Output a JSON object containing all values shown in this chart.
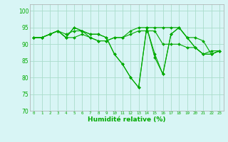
{
  "title": "",
  "xlabel": "Humidité relative (%)",
  "ylabel": "",
  "background_color": "#d8f5f5",
  "grid_color": "#aaddcc",
  "line_color": "#00aa00",
  "xlim": [
    -0.5,
    23.5
  ],
  "ylim": [
    70,
    102
  ],
  "yticks": [
    70,
    75,
    80,
    85,
    90,
    95,
    100
  ],
  "xticks": [
    0,
    1,
    2,
    3,
    4,
    5,
    6,
    7,
    8,
    9,
    10,
    11,
    12,
    13,
    14,
    15,
    16,
    17,
    18,
    19,
    20,
    21,
    22,
    23
  ],
  "series": [
    [
      92,
      92,
      93,
      94,
      92,
      95,
      94,
      92,
      91,
      91,
      92,
      92,
      94,
      95,
      95,
      95,
      95,
      95,
      95,
      92,
      92,
      91,
      87,
      88
    ],
    [
      92,
      92,
      93,
      94,
      93,
      94,
      94,
      93,
      93,
      92,
      87,
      84,
      80,
      77,
      95,
      87,
      81,
      93,
      95,
      92,
      89,
      87,
      88,
      88
    ],
    [
      92,
      92,
      93,
      94,
      92,
      95,
      94,
      93,
      93,
      92,
      87,
      84,
      80,
      77,
      95,
      86,
      81,
      93,
      95,
      92,
      89,
      87,
      87,
      88
    ],
    [
      92,
      92,
      93,
      94,
      92,
      92,
      93,
      92,
      91,
      91,
      92,
      92,
      93,
      94,
      94,
      94,
      90,
      90,
      90,
      89,
      89,
      87,
      87,
      88
    ]
  ],
  "figsize": [
    3.2,
    2.0
  ],
  "dpi": 100
}
